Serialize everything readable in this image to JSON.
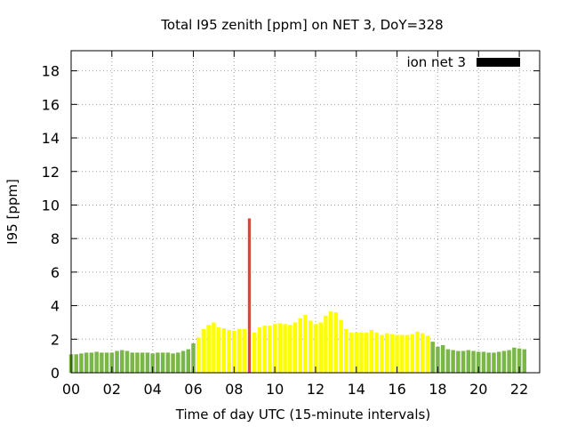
{
  "chart_data": {
    "type": "bar",
    "title": "Total I95 zenith [ppm] on NET 3, DoY=328",
    "xlabel": "Time of day UTC (15-minute intervals)",
    "ylabel": "I95 [ppm]",
    "xlim": [
      0,
      23
    ],
    "ylim": [
      0,
      19.2
    ],
    "x_step_hours": 0.25,
    "x_ticks": [
      {
        "value": 0,
        "label": "00"
      },
      {
        "value": 2,
        "label": "02"
      },
      {
        "value": 4,
        "label": "04"
      },
      {
        "value": 6,
        "label": "06"
      },
      {
        "value": 8,
        "label": "08"
      },
      {
        "value": 10,
        "label": "10"
      },
      {
        "value": 12,
        "label": "12"
      },
      {
        "value": 14,
        "label": "14"
      },
      {
        "value": 16,
        "label": "16"
      },
      {
        "value": 18,
        "label": "18"
      },
      {
        "value": 20,
        "label": "20"
      },
      {
        "value": 22,
        "label": "22"
      }
    ],
    "y_ticks": [
      {
        "value": 0,
        "label": "0"
      },
      {
        "value": 2,
        "label": "2"
      },
      {
        "value": 4,
        "label": "4"
      },
      {
        "value": 6,
        "label": "6"
      },
      {
        "value": 8,
        "label": "8"
      },
      {
        "value": 10,
        "label": "10"
      },
      {
        "value": 12,
        "label": "12"
      },
      {
        "value": 14,
        "label": "14"
      },
      {
        "value": 16,
        "label": "16"
      },
      {
        "value": 18,
        "label": "18"
      }
    ],
    "grid": true,
    "legend": {
      "label": "ion net 3",
      "color": "#000000",
      "placement": "top-right"
    },
    "colors": {
      "low": "#7ab648",
      "medium": "#ffff00",
      "high": "#e8413c"
    },
    "values": [
      1.1,
      1.1,
      1.15,
      1.2,
      1.2,
      1.25,
      1.2,
      1.2,
      1.2,
      1.3,
      1.35,
      1.3,
      1.2,
      1.2,
      1.2,
      1.2,
      1.15,
      1.2,
      1.2,
      1.2,
      1.15,
      1.2,
      1.3,
      1.4,
      1.75,
      2.1,
      2.6,
      2.85,
      3.0,
      2.7,
      2.65,
      2.55,
      2.5,
      2.6,
      2.6,
      9.2,
      2.4,
      2.7,
      2.8,
      2.8,
      2.9,
      2.95,
      2.9,
      2.85,
      3.0,
      3.25,
      3.45,
      3.1,
      2.9,
      3.0,
      3.4,
      3.65,
      3.6,
      3.15,
      2.6,
      2.4,
      2.4,
      2.4,
      2.4,
      2.55,
      2.4,
      2.25,
      2.35,
      2.3,
      2.25,
      2.25,
      2.25,
      2.3,
      2.45,
      2.35,
      2.2,
      1.85,
      1.55,
      1.65,
      1.4,
      1.35,
      1.3,
      1.3,
      1.35,
      1.3,
      1.25,
      1.25,
      1.2,
      1.2,
      1.25,
      1.3,
      1.35,
      1.5,
      1.45,
      1.4
    ],
    "levels": [
      "low",
      "low",
      "low",
      "low",
      "low",
      "low",
      "low",
      "low",
      "low",
      "low",
      "low",
      "low",
      "low",
      "low",
      "low",
      "low",
      "low",
      "low",
      "low",
      "low",
      "low",
      "low",
      "low",
      "low",
      "low",
      "medium",
      "medium",
      "medium",
      "medium",
      "medium",
      "medium",
      "medium",
      "medium",
      "medium",
      "medium",
      "high",
      "medium",
      "medium",
      "medium",
      "medium",
      "medium",
      "medium",
      "medium",
      "medium",
      "medium",
      "medium",
      "medium",
      "medium",
      "medium",
      "medium",
      "medium",
      "medium",
      "medium",
      "medium",
      "medium",
      "medium",
      "medium",
      "medium",
      "medium",
      "medium",
      "medium",
      "medium",
      "medium",
      "medium",
      "medium",
      "medium",
      "medium",
      "medium",
      "medium",
      "medium",
      "medium",
      "low",
      "low",
      "low",
      "low",
      "low",
      "low",
      "low",
      "low",
      "low",
      "low",
      "low",
      "low",
      "low",
      "low",
      "low",
      "low",
      "low",
      "low",
      "low"
    ]
  }
}
